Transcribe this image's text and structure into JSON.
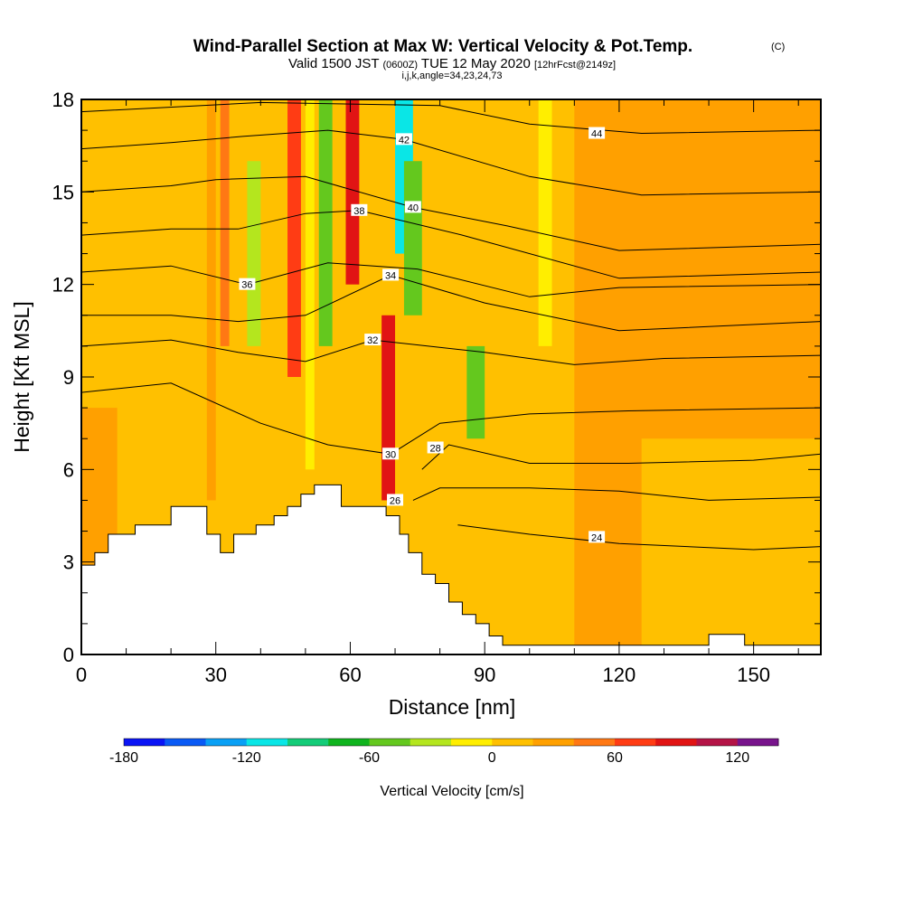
{
  "chart_data": {
    "type": "heatmap",
    "title": "Wind-Parallel Section at Max W: Vertical Velocity & Pot.Temp.",
    "title_mark": "(C)",
    "subtitle_main": "Valid 1500 JST",
    "subtitle_utc": "(0600Z)",
    "subtitle_date": "TUE 12 May 2020",
    "subtitle_fcst": "[12hrFcst@2149z]",
    "subtitle_ijk": "i,j,k,angle=34,23,24,73",
    "xlabel": "Distance [nm]",
    "ylabel": "Height [Kft MSL]",
    "xlim": [
      0,
      165
    ],
    "ylim": [
      0,
      18
    ],
    "x_ticks": [
      0,
      30,
      60,
      90,
      120,
      150
    ],
    "y_ticks": [
      0,
      3,
      6,
      9,
      12,
      15,
      18
    ],
    "colorbar": {
      "label": "Vertical Velocity [cm/s]",
      "range": [
        -180,
        140
      ],
      "step": 20,
      "tick_values": [
        -180,
        -120,
        -60,
        0,
        60,
        120
      ],
      "colors": [
        "#0a14f5",
        "#0a5af5",
        "#0aa0f5",
        "#0ae6e6",
        "#14cc78",
        "#10b41e",
        "#64c81e",
        "#b4e61e",
        "#ffee00",
        "#ffc000",
        "#ffa000",
        "#ff7814",
        "#ff3c14",
        "#e11414",
        "#b41446",
        "#78148c"
      ]
    },
    "velocity_cells": [
      {
        "x": [
          0,
          165
        ],
        "y": [
          0,
          18
        ],
        "w": 10
      },
      {
        "x": [
          0,
          8
        ],
        "y": [
          0,
          8
        ],
        "w": 30
      },
      {
        "x": [
          28,
          30
        ],
        "y": [
          5,
          18
        ],
        "w": 30
      },
      {
        "x": [
          31,
          33
        ],
        "y": [
          10,
          18
        ],
        "w": 50
      },
      {
        "x": [
          37,
          40
        ],
        "y": [
          10,
          16
        ],
        "w": -40
      },
      {
        "x": [
          46,
          49
        ],
        "y": [
          9,
          18
        ],
        "w": 70
      },
      {
        "x": [
          50,
          52
        ],
        "y": [
          6,
          18
        ],
        "w": -20
      },
      {
        "x": [
          53,
          56
        ],
        "y": [
          10,
          18
        ],
        "w": -60
      },
      {
        "x": [
          59,
          62
        ],
        "y": [
          12,
          18
        ],
        "w": 80
      },
      {
        "x": [
          67,
          70
        ],
        "y": [
          5,
          11
        ],
        "w": 80
      },
      {
        "x": [
          70,
          74
        ],
        "y": [
          13,
          18
        ],
        "w": -110
      },
      {
        "x": [
          72,
          76
        ],
        "y": [
          11,
          16
        ],
        "w": -60
      },
      {
        "x": [
          86,
          90
        ],
        "y": [
          7,
          10
        ],
        "w": -60
      },
      {
        "x": [
          102,
          105
        ],
        "y": [
          10,
          18
        ],
        "w": -20
      },
      {
        "x": [
          110,
          165
        ],
        "y": [
          0,
          18
        ],
        "w": 20
      },
      {
        "x": [
          125,
          165
        ],
        "y": [
          0,
          7
        ],
        "w": 0
      }
    ],
    "theta_contours": [
      {
        "value": 24,
        "label_at": [
          115,
          3.8
        ],
        "points": [
          [
            84,
            4.2
          ],
          [
            100,
            3.9
          ],
          [
            120,
            3.6
          ],
          [
            150,
            3.4
          ],
          [
            165,
            3.5
          ]
        ]
      },
      {
        "value": 26,
        "label_at": [
          70,
          5
        ],
        "points": [
          [
            74,
            5
          ],
          [
            80,
            5.4
          ],
          [
            100,
            5.4
          ],
          [
            120,
            5.3
          ],
          [
            140,
            5.0
          ],
          [
            165,
            5.1
          ]
        ]
      },
      {
        "value": 28,
        "label_at": [
          79,
          6.7
        ],
        "points": [
          [
            76,
            6
          ],
          [
            82,
            6.8
          ],
          [
            100,
            6.2
          ],
          [
            122,
            6.2
          ],
          [
            150,
            6.3
          ],
          [
            165,
            6.5
          ]
        ]
      },
      {
        "value": 30,
        "label_at": [
          69,
          6.5
        ],
        "points": [
          [
            0,
            8.5
          ],
          [
            20,
            8.8
          ],
          [
            40,
            7.5
          ],
          [
            55,
            6.8
          ],
          [
            69,
            6.5
          ],
          [
            80,
            7.5
          ],
          [
            100,
            7.8
          ],
          [
            122,
            7.9
          ],
          [
            165,
            8
          ]
        ]
      },
      {
        "value": 32,
        "label_at": [
          65,
          10.2
        ],
        "points": [
          [
            0,
            10
          ],
          [
            20,
            10.2
          ],
          [
            35,
            9.8
          ],
          [
            50,
            9.5
          ],
          [
            65,
            10.2
          ],
          [
            90,
            9.8
          ],
          [
            110,
            9.4
          ],
          [
            130,
            9.6
          ],
          [
            165,
            9.7
          ]
        ]
      },
      {
        "value": 34,
        "label_at": [
          69,
          12.3
        ],
        "points": [
          [
            0,
            11
          ],
          [
            20,
            11
          ],
          [
            35,
            10.8
          ],
          [
            50,
            11
          ],
          [
            69,
            12.3
          ],
          [
            90,
            11.4
          ],
          [
            120,
            10.5
          ],
          [
            165,
            10.8
          ]
        ]
      },
      {
        "value": 36,
        "label_at": [
          37,
          12
        ],
        "points": [
          [
            0,
            12.4
          ],
          [
            20,
            12.6
          ],
          [
            37,
            12
          ],
          [
            55,
            12.7
          ],
          [
            75,
            12.5
          ],
          [
            100,
            11.6
          ],
          [
            120,
            11.9
          ],
          [
            165,
            12
          ]
        ]
      },
      {
        "value": 38,
        "label_at": [
          62,
          14.4
        ],
        "points": [
          [
            0,
            13.6
          ],
          [
            20,
            13.8
          ],
          [
            35,
            13.8
          ],
          [
            50,
            14.3
          ],
          [
            62,
            14.4
          ],
          [
            85,
            13.6
          ],
          [
            120,
            12.2
          ],
          [
            165,
            12.4
          ]
        ]
      },
      {
        "value": 40,
        "label_at": [
          74,
          14.5
        ],
        "points": [
          [
            0,
            15
          ],
          [
            20,
            15.2
          ],
          [
            30,
            15.4
          ],
          [
            50,
            15.5
          ],
          [
            74,
            14.5
          ],
          [
            95,
            13.9
          ],
          [
            120,
            13.1
          ],
          [
            165,
            13.3
          ]
        ]
      },
      {
        "value": 42,
        "label_at": [
          72,
          16.7
        ],
        "points": [
          [
            0,
            16.4
          ],
          [
            20,
            16.6
          ],
          [
            36,
            16.8
          ],
          [
            55,
            17
          ],
          [
            72,
            16.7
          ],
          [
            100,
            15.5
          ],
          [
            125,
            14.9
          ],
          [
            165,
            15
          ]
        ]
      },
      {
        "value": 44,
        "label_at": [
          115,
          16.9
        ],
        "points": [
          [
            0,
            17.6
          ],
          [
            40,
            17.9
          ],
          [
            80,
            17.8
          ],
          [
            100,
            17.2
          ],
          [
            125,
            16.9
          ],
          [
            165,
            17
          ]
        ]
      }
    ],
    "terrain_profile": [
      [
        0,
        2.9
      ],
      [
        3,
        2.9
      ],
      [
        3,
        3.3
      ],
      [
        6,
        3.3
      ],
      [
        6,
        3.9
      ],
      [
        12,
        3.9
      ],
      [
        12,
        4.2
      ],
      [
        20,
        4.2
      ],
      [
        20,
        4.8
      ],
      [
        28,
        4.8
      ],
      [
        28,
        3.9
      ],
      [
        31,
        3.9
      ],
      [
        31,
        3.3
      ],
      [
        34,
        3.3
      ],
      [
        34,
        3.9
      ],
      [
        39,
        3.9
      ],
      [
        39,
        4.2
      ],
      [
        43,
        4.2
      ],
      [
        43,
        4.5
      ],
      [
        46,
        4.5
      ],
      [
        46,
        4.8
      ],
      [
        49,
        4.8
      ],
      [
        49,
        5.2
      ],
      [
        52,
        5.2
      ],
      [
        52,
        5.5
      ],
      [
        58,
        5.5
      ],
      [
        58,
        4.8
      ],
      [
        68,
        4.8
      ],
      [
        68,
        4.5
      ],
      [
        71,
        4.5
      ],
      [
        71,
        3.9
      ],
      [
        73,
        3.9
      ],
      [
        73,
        3.3
      ],
      [
        76,
        3.3
      ],
      [
        76,
        2.6
      ],
      [
        79,
        2.6
      ],
      [
        79,
        2.3
      ],
      [
        82,
        2.3
      ],
      [
        82,
        1.7
      ],
      [
        85,
        1.7
      ],
      [
        85,
        1.3
      ],
      [
        88,
        1.3
      ],
      [
        88,
        1.0
      ],
      [
        91,
        1.0
      ],
      [
        91,
        0.6
      ],
      [
        94,
        0.6
      ],
      [
        94,
        0.3
      ],
      [
        140,
        0.3
      ],
      [
        140,
        0.65
      ],
      [
        148,
        0.65
      ],
      [
        148,
        0.3
      ],
      [
        165,
        0.3
      ]
    ]
  }
}
